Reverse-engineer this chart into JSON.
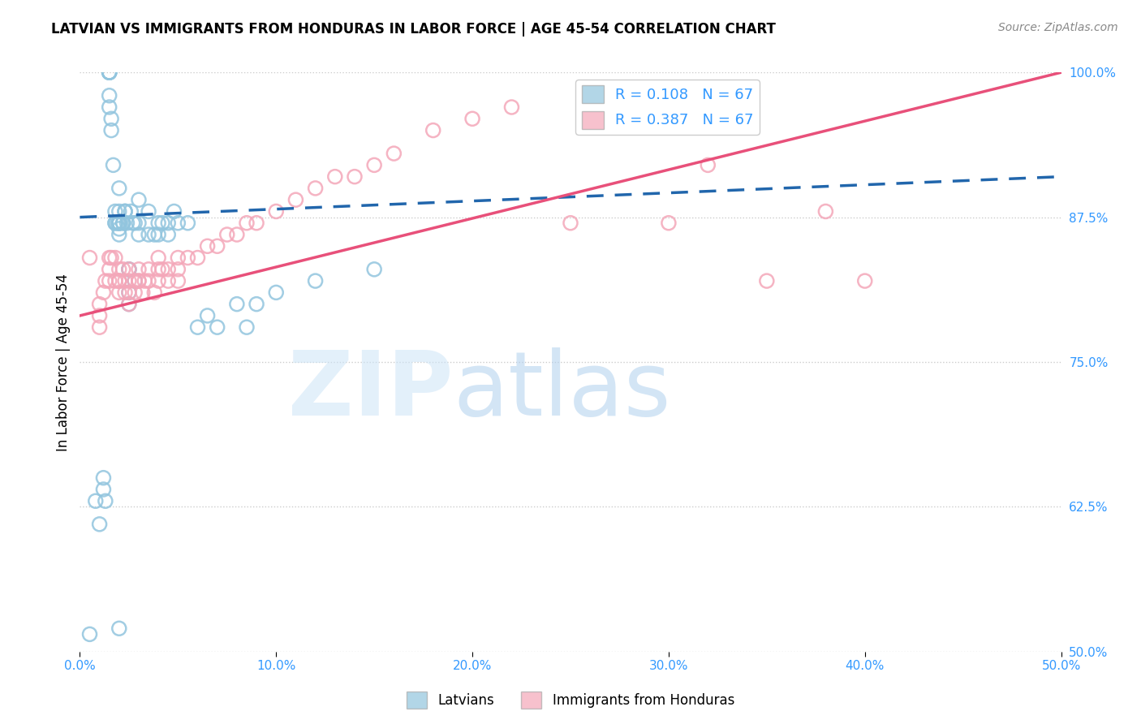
{
  "title": "LATVIAN VS IMMIGRANTS FROM HONDURAS IN LABOR FORCE | AGE 45-54 CORRELATION CHART",
  "source": "Source: ZipAtlas.com",
  "ylabel": "In Labor Force | Age 45-54",
  "legend_labels": [
    "Latvians",
    "Immigrants from Honduras"
  ],
  "legend_R": [
    0.108,
    0.387
  ],
  "legend_N": [
    67,
    67
  ],
  "blue_color": "#92c5de",
  "pink_color": "#f4a7b9",
  "blue_line_color": "#2166ac",
  "pink_line_color": "#e8507a",
  "axis_label_color": "#3399ff",
  "xlim": [
    0.0,
    0.5
  ],
  "ylim": [
    0.5,
    1.0
  ],
  "xticks": [
    0.0,
    0.1,
    0.2,
    0.3,
    0.4,
    0.5
  ],
  "xtick_labels": [
    "0.0%",
    "10.0%",
    "20.0%",
    "30.0%",
    "40.0%",
    "50.0%"
  ],
  "yticks": [
    0.5,
    0.625,
    0.75,
    0.875,
    1.0
  ],
  "ytick_labels": [
    "50.0%",
    "62.5%",
    "75.0%",
    "87.5%",
    "100.0%"
  ],
  "latvian_x": [
    0.005,
    0.008,
    0.01,
    0.012,
    0.012,
    0.013,
    0.015,
    0.015,
    0.015,
    0.015,
    0.015,
    0.015,
    0.015,
    0.016,
    0.016,
    0.017,
    0.018,
    0.018,
    0.018,
    0.019,
    0.02,
    0.02,
    0.02,
    0.02,
    0.02,
    0.02,
    0.02,
    0.02,
    0.02,
    0.022,
    0.022,
    0.023,
    0.023,
    0.023,
    0.024,
    0.025,
    0.025,
    0.025,
    0.025,
    0.026,
    0.027,
    0.028,
    0.028,
    0.03,
    0.03,
    0.03,
    0.035,
    0.035,
    0.038,
    0.04,
    0.04,
    0.042,
    0.045,
    0.045,
    0.048,
    0.05,
    0.055,
    0.06,
    0.065,
    0.07,
    0.08,
    0.085,
    0.09,
    0.1,
    0.12,
    0.15,
    0.02
  ],
  "latvian_y": [
    0.515,
    0.63,
    0.61,
    0.65,
    0.64,
    0.63,
    1.0,
    1.0,
    1.0,
    1.0,
    1.0,
    0.98,
    0.97,
    0.95,
    0.96,
    0.92,
    0.88,
    0.87,
    0.87,
    0.87,
    0.87,
    0.87,
    0.87,
    0.87,
    0.865,
    0.87,
    0.86,
    0.88,
    0.9,
    0.87,
    0.87,
    0.88,
    0.88,
    0.88,
    0.87,
    0.83,
    0.81,
    0.8,
    0.83,
    0.88,
    0.87,
    0.87,
    0.82,
    0.86,
    0.87,
    0.89,
    0.86,
    0.88,
    0.86,
    0.87,
    0.86,
    0.87,
    0.87,
    0.86,
    0.88,
    0.87,
    0.87,
    0.78,
    0.79,
    0.78,
    0.8,
    0.78,
    0.8,
    0.81,
    0.82,
    0.83,
    0.52
  ],
  "honduras_x": [
    0.005,
    0.01,
    0.01,
    0.01,
    0.012,
    0.013,
    0.015,
    0.015,
    0.015,
    0.016,
    0.018,
    0.018,
    0.02,
    0.02,
    0.02,
    0.02,
    0.02,
    0.022,
    0.023,
    0.023,
    0.025,
    0.025,
    0.025,
    0.025,
    0.028,
    0.028,
    0.03,
    0.03,
    0.03,
    0.032,
    0.033,
    0.035,
    0.035,
    0.038,
    0.04,
    0.04,
    0.04,
    0.042,
    0.045,
    0.045,
    0.05,
    0.05,
    0.05,
    0.055,
    0.06,
    0.065,
    0.07,
    0.075,
    0.08,
    0.085,
    0.09,
    0.1,
    0.11,
    0.12,
    0.13,
    0.14,
    0.15,
    0.16,
    0.18,
    0.2,
    0.22,
    0.25,
    0.3,
    0.32,
    0.35,
    0.38,
    0.4
  ],
  "honduras_y": [
    0.84,
    0.8,
    0.78,
    0.79,
    0.81,
    0.82,
    0.83,
    0.82,
    0.84,
    0.84,
    0.84,
    0.82,
    0.83,
    0.82,
    0.82,
    0.81,
    0.82,
    0.83,
    0.82,
    0.81,
    0.83,
    0.82,
    0.81,
    0.8,
    0.82,
    0.81,
    0.82,
    0.82,
    0.83,
    0.81,
    0.82,
    0.83,
    0.82,
    0.81,
    0.84,
    0.83,
    0.82,
    0.83,
    0.83,
    0.82,
    0.84,
    0.83,
    0.82,
    0.84,
    0.84,
    0.85,
    0.85,
    0.86,
    0.86,
    0.87,
    0.87,
    0.88,
    0.89,
    0.9,
    0.91,
    0.91,
    0.92,
    0.93,
    0.95,
    0.96,
    0.97,
    0.87,
    0.87,
    0.92,
    0.82,
    0.88,
    0.82
  ]
}
